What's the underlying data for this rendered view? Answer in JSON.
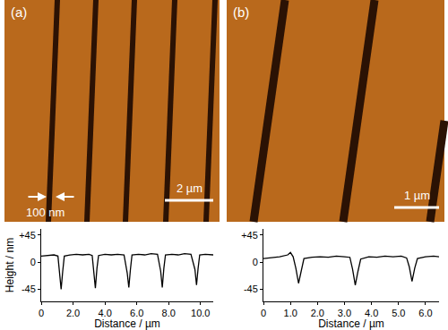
{
  "chart_data": [
    {
      "type": "line",
      "panel_label": "(a)",
      "scale_bar": "2 µm",
      "annotation": "100 nm",
      "x_label": "Distance / µm",
      "y_label": "Height / nm",
      "color": "#000000",
      "x": [
        0,
        0.4,
        0.8,
        1.05,
        1.15,
        1.25,
        1.35,
        1.45,
        1.8,
        2.2,
        2.6,
        3.0,
        3.2,
        3.3,
        3.4,
        3.5,
        3.6,
        4.0,
        4.4,
        4.8,
        5.2,
        5.4,
        5.5,
        5.6,
        5.7,
        6.1,
        6.5,
        6.9,
        7.3,
        7.5,
        7.6,
        7.7,
        7.8,
        8.2,
        8.6,
        9.0,
        9.4,
        9.65,
        9.75,
        9.85,
        9.95,
        10.3,
        10.8
      ],
      "values": [
        10,
        11,
        12,
        10,
        -20,
        -45,
        -15,
        10,
        12,
        13,
        12,
        13,
        11,
        -15,
        -43,
        -10,
        11,
        13,
        12,
        13,
        12,
        -18,
        -42,
        -12,
        12,
        13,
        12,
        14,
        13,
        -15,
        -42,
        -10,
        12,
        13,
        12,
        14,
        13,
        -12,
        -38,
        -10,
        12,
        13,
        12
      ],
      "xlim": [
        0,
        10.8
      ],
      "ylim": [
        -65,
        55
      ],
      "xticks": [
        0,
        {
          "value": 2,
          "label": "2.0"
        },
        {
          "value": 4,
          "label": "4.0"
        },
        {
          "value": 6,
          "label": "6.0"
        },
        {
          "value": 8,
          "label": "8.0"
        },
        {
          "value": 10,
          "label": "10.0"
        }
      ],
      "yticks": [
        -45,
        0,
        {
          "value": 45,
          "label": "+45"
        }
      ],
      "grid": false
    },
    {
      "type": "line",
      "panel_label": "(b)",
      "scale_bar": "1 µm",
      "x_label": "Distance / µm",
      "color": "#000000",
      "x": [
        0,
        0.3,
        0.6,
        0.9,
        1.0,
        1.1,
        1.2,
        1.3,
        1.4,
        1.5,
        1.8,
        2.1,
        2.4,
        2.7,
        3.0,
        3.2,
        3.3,
        3.4,
        3.5,
        3.6,
        3.9,
        4.2,
        4.5,
        4.8,
        5.1,
        5.3,
        5.4,
        5.5,
        5.6,
        5.7,
        6.0,
        6.3,
        6.5
      ],
      "values": [
        6,
        7,
        9,
        12,
        16,
        9,
        -10,
        -35,
        -12,
        6,
        8,
        9,
        8,
        10,
        9,
        8,
        -12,
        -38,
        -15,
        5,
        9,
        8,
        10,
        9,
        10,
        7,
        -8,
        -32,
        -10,
        6,
        9,
        10,
        9
      ],
      "xlim": [
        0,
        6.5
      ],
      "ylim": [
        -65,
        55
      ],
      "xticks": [
        0,
        {
          "value": 1,
          "label": "1.0"
        },
        {
          "value": 2,
          "label": "2.0"
        },
        {
          "value": 3,
          "label": "3.0"
        },
        {
          "value": 4,
          "label": "4.0"
        },
        {
          "value": 5,
          "label": "5.0"
        },
        {
          "value": 6,
          "label": "6.0"
        }
      ],
      "yticks": [
        -45,
        0,
        {
          "value": 45,
          "label": "+45"
        }
      ],
      "grid": false
    }
  ]
}
